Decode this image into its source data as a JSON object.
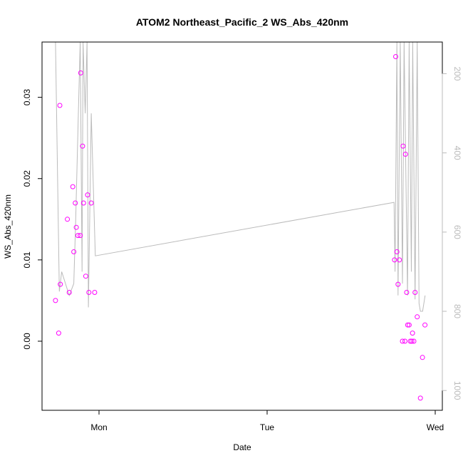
{
  "chart_data": {
    "type": "scatter",
    "title": "ATOM2 Northeast_Pacific_2 WS_Abs_420nm",
    "xlabel": "Date",
    "ylabel": "WS_Abs_420nm",
    "x_ticks": [
      "Mon",
      "Tue",
      "Wed"
    ],
    "y_ticks": [
      0.0,
      0.01,
      0.02,
      0.03
    ],
    "y_tick_labels": [
      "0.00",
      "0.01",
      "0.02",
      "0.03"
    ],
    "ylim": [
      -0.0085,
      0.0368
    ],
    "y2_ticks": [
      200,
      400,
      600,
      800,
      1000
    ],
    "y2_tick_labels": [
      "200",
      "400",
      "600",
      "800",
      "1000"
    ],
    "y2lim": [
      1050,
      120
    ],
    "y2_reversed": true,
    "grid": false,
    "point_color": "#ff00ff",
    "line_color": "#bbbbbb",
    "series": [
      {
        "type": "scatter",
        "points": [
          {
            "x": -0.259,
            "y": 0.005
          },
          {
            "x": -0.24,
            "y": 0.001
          },
          {
            "x": -0.233,
            "y": 0.029
          },
          {
            "x": -0.23,
            "y": 0.007
          },
          {
            "x": -0.188,
            "y": 0.015
          },
          {
            "x": -0.177,
            "y": 0.006
          },
          {
            "x": -0.156,
            "y": 0.019
          },
          {
            "x": -0.15,
            "y": 0.011
          },
          {
            "x": -0.141,
            "y": 0.017
          },
          {
            "x": -0.135,
            "y": 0.014
          },
          {
            "x": -0.126,
            "y": 0.013
          },
          {
            "x": -0.112,
            "y": 0.013
          },
          {
            "x": -0.109,
            "y": 0.033
          },
          {
            "x": -0.098,
            "y": 0.024
          },
          {
            "x": -0.092,
            "y": 0.017
          },
          {
            "x": -0.079,
            "y": 0.008
          },
          {
            "x": -0.068,
            "y": 0.018
          },
          {
            "x": -0.06,
            "y": 0.006
          },
          {
            "x": -0.046,
            "y": 0.017
          },
          {
            "x": -0.026,
            "y": 0.006
          },
          {
            "x": 1.758,
            "y": 0.01
          },
          {
            "x": 1.765,
            "y": 0.035
          },
          {
            "x": 1.772,
            "y": 0.011
          },
          {
            "x": 1.779,
            "y": 0.007
          },
          {
            "x": 1.787,
            "y": 0.01
          },
          {
            "x": 1.805,
            "y": 0.0
          },
          {
            "x": 1.809,
            "y": 0.024
          },
          {
            "x": 1.82,
            "y": 0.0
          },
          {
            "x": 1.823,
            "y": 0.023
          },
          {
            "x": 1.83,
            "y": 0.006
          },
          {
            "x": 1.836,
            "y": 0.002
          },
          {
            "x": 1.845,
            "y": 0.002
          },
          {
            "x": 1.852,
            "y": 0.0
          },
          {
            "x": 1.861,
            "y": 0.0
          },
          {
            "x": 1.865,
            "y": 0.001
          },
          {
            "x": 1.873,
            "y": 0.0
          },
          {
            "x": 1.88,
            "y": 0.006
          },
          {
            "x": 1.893,
            "y": 0.003
          },
          {
            "x": 1.912,
            "y": -0.007
          },
          {
            "x": 1.924,
            "y": -0.002
          },
          {
            "x": 1.939,
            "y": 0.002
          }
        ]
      },
      {
        "type": "line",
        "axis": "right",
        "points": [
          {
            "x": -0.259,
            "y": 120
          },
          {
            "x": -0.236,
            "y": 750
          },
          {
            "x": -0.222,
            "y": 700
          },
          {
            "x": -0.177,
            "y": 760
          },
          {
            "x": -0.15,
            "y": 730
          },
          {
            "x": -0.138,
            "y": 560
          },
          {
            "x": -0.123,
            "y": 300
          },
          {
            "x": -0.112,
            "y": 120
          },
          {
            "x": -0.101,
            "y": 700
          },
          {
            "x": -0.095,
            "y": 120
          },
          {
            "x": -0.082,
            "y": 300
          },
          {
            "x": -0.071,
            "y": 120
          },
          {
            "x": -0.063,
            "y": 790
          },
          {
            "x": -0.046,
            "y": 300
          },
          {
            "x": -0.022,
            "y": 660
          },
          {
            "x": 1.755,
            "y": 525
          },
          {
            "x": 1.761,
            "y": 700
          },
          {
            "x": 1.772,
            "y": 120
          },
          {
            "x": 1.779,
            "y": 760
          },
          {
            "x": 1.792,
            "y": 120
          },
          {
            "x": 1.805,
            "y": 730
          },
          {
            "x": 1.815,
            "y": 120
          },
          {
            "x": 1.835,
            "y": 760
          },
          {
            "x": 1.845,
            "y": 120
          },
          {
            "x": 1.858,
            "y": 700
          },
          {
            "x": 1.866,
            "y": 120
          },
          {
            "x": 1.88,
            "y": 770
          },
          {
            "x": 1.893,
            "y": 120
          },
          {
            "x": 1.904,
            "y": 780
          },
          {
            "x": 1.912,
            "y": 800
          },
          {
            "x": 1.925,
            "y": 800
          },
          {
            "x": 1.94,
            "y": 760
          }
        ]
      }
    ]
  }
}
